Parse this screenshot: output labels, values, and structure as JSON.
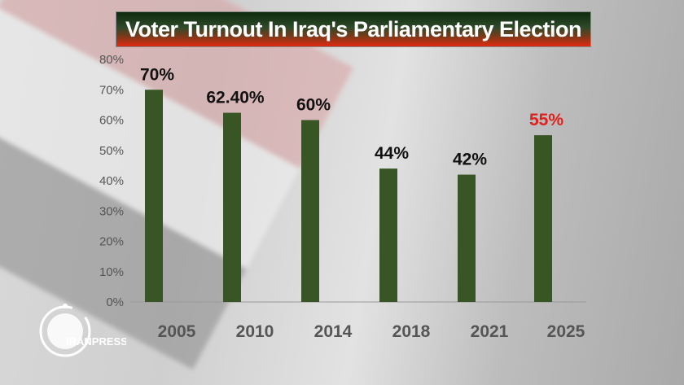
{
  "title": "Voter Turnout  In Iraq's Parliamentary Election",
  "logo_text": "IRANPRESS",
  "chart_data": {
    "type": "bar",
    "title": "Voter Turnout  In Iraq's Parliamentary Election",
    "categories": [
      "2005",
      "2010",
      "2014",
      "2018",
      "2021",
      "2025"
    ],
    "values": [
      70,
      62.4,
      60,
      44,
      42,
      55
    ],
    "data_labels": [
      "70%",
      "62.40%",
      "60%",
      "44%",
      "42%",
      "55%"
    ],
    "highlight_index": 5,
    "ylim": [
      0,
      80
    ],
    "yticks": [
      "0%",
      "10%",
      "20%",
      "30%",
      "40%",
      "50%",
      "60%",
      "70%",
      "80%"
    ],
    "grid": false,
    "colors": {
      "bar": "#375623",
      "label": "#111111",
      "highlight_label": "#e0201a",
      "tick": "#555555"
    }
  }
}
